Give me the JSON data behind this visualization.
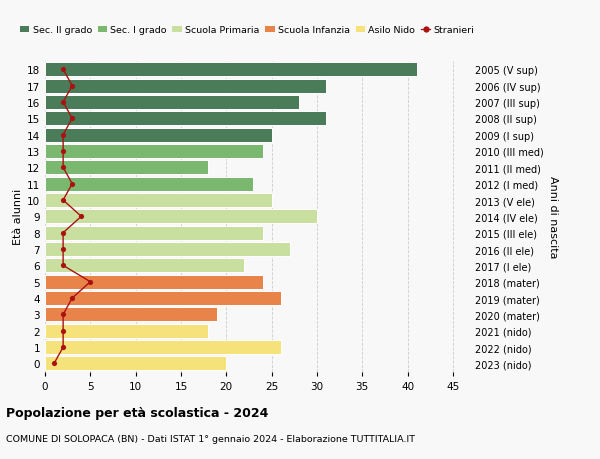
{
  "ages": [
    0,
    1,
    2,
    3,
    4,
    5,
    6,
    7,
    8,
    9,
    10,
    11,
    12,
    13,
    14,
    15,
    16,
    17,
    18
  ],
  "values": [
    20,
    26,
    18,
    19,
    26,
    24,
    22,
    27,
    24,
    30,
    25,
    23,
    18,
    24,
    25,
    31,
    28,
    31,
    41
  ],
  "stranieri": [
    1,
    2,
    2,
    2,
    3,
    5,
    2,
    2,
    2,
    4,
    2,
    3,
    2,
    2,
    2,
    3,
    2,
    3,
    2
  ],
  "bar_colors": [
    "#f5e27a",
    "#f5e27a",
    "#f5e27a",
    "#e8834a",
    "#e8834a",
    "#e8834a",
    "#c8dfa0",
    "#c8dfa0",
    "#c8dfa0",
    "#c8dfa0",
    "#c8dfa0",
    "#7ab870",
    "#7ab870",
    "#7ab870",
    "#4a7c59",
    "#4a7c59",
    "#4a7c59",
    "#4a7c59",
    "#4a7c59"
  ],
  "right_labels": [
    "2023 (nido)",
    "2022 (nido)",
    "2021 (nido)",
    "2020 (mater)",
    "2019 (mater)",
    "2018 (mater)",
    "2017 (I ele)",
    "2016 (II ele)",
    "2015 (III ele)",
    "2014 (IV ele)",
    "2013 (V ele)",
    "2012 (I med)",
    "2011 (II med)",
    "2010 (III med)",
    "2009 (I sup)",
    "2008 (II sup)",
    "2007 (III sup)",
    "2006 (IV sup)",
    "2005 (V sup)"
  ],
  "ylabel_left": "Età alunni",
  "ylabel_right": "Anni di nascita",
  "title_bold": "Popolazione per età scolastica - 2024",
  "subtitle": "COMUNE DI SOLOPACA (BN) - Dati ISTAT 1° gennaio 2024 - Elaborazione TUTTITALIA.IT",
  "xlim": [
    0,
    47
  ],
  "xticks": [
    0,
    5,
    10,
    15,
    20,
    25,
    30,
    35,
    40,
    45
  ],
  "legend_labels": [
    "Sec. II grado",
    "Sec. I grado",
    "Scuola Primaria",
    "Scuola Infanzia",
    "Asilo Nido",
    "Stranieri"
  ],
  "legend_colors": [
    "#4a7c59",
    "#7ab870",
    "#c8dfa0",
    "#e8834a",
    "#f5e27a",
    "#cc2200"
  ],
  "grid_color": "#cccccc",
  "bg_color": "#f8f8f8",
  "stranieri_color": "#aa1111",
  "bar_edgecolor": "white",
  "bar_linewidth": 0.7,
  "bar_height": 0.85
}
